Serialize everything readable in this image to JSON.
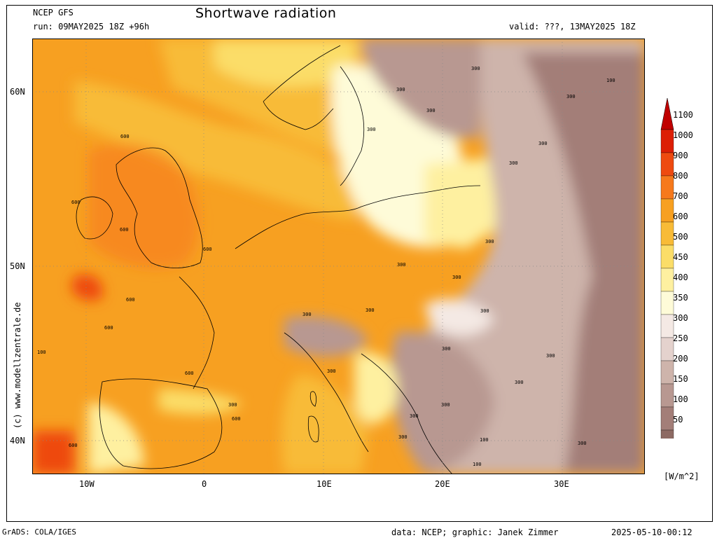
{
  "header": {
    "model": "NCEP GFS",
    "run": "run: 09MAY2025 18Z +96h",
    "title": "Shortwave radiation",
    "valid": "valid: ???, 13MAY2025 18Z"
  },
  "footer": {
    "grads": "GrADS: COLA/IGES",
    "data": "data: NCEP; graphic: Janek Zimmer",
    "timestamp": "2025-05-10-00:12"
  },
  "credit": "(c) www.modellzentrale.de",
  "axes": {
    "lat_labels": [
      "60N",
      "50N",
      "40N"
    ],
    "lon_labels": [
      "10W",
      "0",
      "10E",
      "20E",
      "30E"
    ]
  },
  "colorbar": {
    "unit": "[W/m^2]",
    "levels": [
      "1100",
      "1000",
      "900",
      "800",
      "700",
      "600",
      "500",
      "450",
      "400",
      "350",
      "300",
      "250",
      "200",
      "150",
      "100",
      "50"
    ],
    "colors": [
      "#c00000",
      "#dc1f05",
      "#ee4a10",
      "#f6791c",
      "#f7a021",
      "#f8bb37",
      "#fbdd68",
      "#fef0a0",
      "#fefbd8",
      "#f4e9e4",
      "#e4d2cd",
      "#ceb4ab",
      "#b89891",
      "#a37e78",
      "#8d6a63",
      "#7a5650"
    ]
  },
  "contour_labels": [
    "300",
    "300",
    "300",
    "300",
    "300",
    "300",
    "300",
    "300",
    "300",
    "300",
    "300",
    "300",
    "300",
    "300",
    "300",
    "300",
    "300",
    "300",
    "300",
    "300",
    "300",
    "300",
    "100",
    "100",
    "100",
    "100",
    "600",
    "600",
    "600",
    "600",
    "600",
    "600",
    "600",
    "600",
    "600"
  ]
}
